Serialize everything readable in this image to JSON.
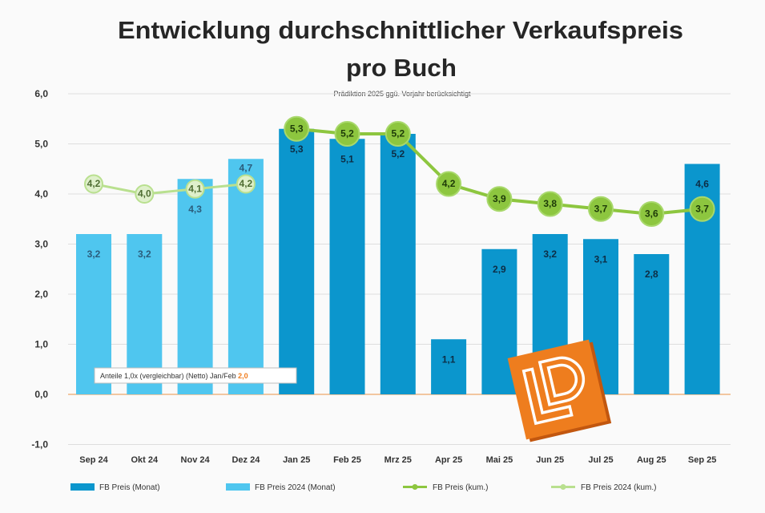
{
  "chart_data": {
    "type": "bar",
    "title_lines": [
      "Entwicklung durchschnittlicher Verkaufspreis",
      "pro Buch"
    ],
    "subtitle": "Prädiktion 2025 ggü. Vorjahr berücksichtigt",
    "xlabel": "",
    "ylabel": "",
    "categories": [
      "Sep 24",
      "Okt 24",
      "Nov 24",
      "Dez 24",
      "Jan 25",
      "Feb 25",
      "Mrz 25",
      "Apr 25",
      "Mai 25",
      "Jun 25",
      "Jul 25",
      "Aug 25",
      "Sep 25"
    ],
    "ylim": [
      -1,
      6
    ],
    "yticks": [
      6,
      5,
      4,
      3,
      2,
      1,
      0,
      -1
    ],
    "ytick_labels": [
      "6,0",
      "5,0",
      "4,0",
      "3,0",
      "2,0",
      "1,0",
      "0,0",
      "-1,0"
    ],
    "grid": true,
    "legend_position": "bottom",
    "series": [
      {
        "name": "FB Preis (Monat)",
        "type": "bar",
        "color": "#0b96cd",
        "values": [
          null,
          null,
          null,
          null,
          5.3,
          5.1,
          5.2,
          1.1,
          2.9,
          3.2,
          3.1,
          2.8,
          4.6
        ],
        "labels": [
          null,
          null,
          null,
          null,
          "5,3",
          "5,1",
          "5,2",
          "1,1",
          "2,9",
          "3,2",
          "3,1",
          "2,8",
          "4,6"
        ]
      },
      {
        "name": "FB Preis 2024 (Monat)",
        "type": "bar",
        "color": "#4fc6ef",
        "values": [
          3.2,
          3.2,
          4.3,
          4.7,
          null,
          null,
          null,
          null,
          null,
          null,
          null,
          null,
          null
        ],
        "labels": [
          "3,2",
          "3,2",
          "4,3",
          "4,7",
          null,
          null,
          null,
          null,
          null,
          null,
          null,
          null,
          null
        ]
      },
      {
        "name": "FB Preis (kum.)",
        "type": "line",
        "color": "#8dc63f",
        "values": [
          null,
          null,
          null,
          null,
          5.3,
          5.2,
          5.2,
          4.2,
          3.9,
          3.8,
          3.7,
          3.6,
          3.7
        ],
        "labels": [
          null,
          null,
          null,
          null,
          "5,3",
          "5,2",
          "5,2",
          "4,2",
          "3,9",
          "3,8",
          "3,7",
          "3,6",
          "3,7"
        ]
      },
      {
        "name": "FB Preis 2024 (kum.)",
        "type": "line",
        "color": "#b9e08f",
        "values": [
          4.2,
          4.0,
          4.1,
          4.2,
          null,
          null,
          null,
          null,
          null,
          null,
          null,
          null,
          null
        ],
        "labels": [
          "4,2",
          "4,0",
          "4,1",
          "4,2",
          null,
          null,
          null,
          null,
          null,
          null,
          null,
          null,
          null
        ]
      }
    ],
    "annotation": {
      "text": "Anteile 1,0x (vergleichbar) (Netto) Jan/Feb ",
      "value": "2,0",
      "value_color": "#f07d1e"
    }
  },
  "logo": {
    "text": "LD",
    "color": "#ee7d1e"
  }
}
